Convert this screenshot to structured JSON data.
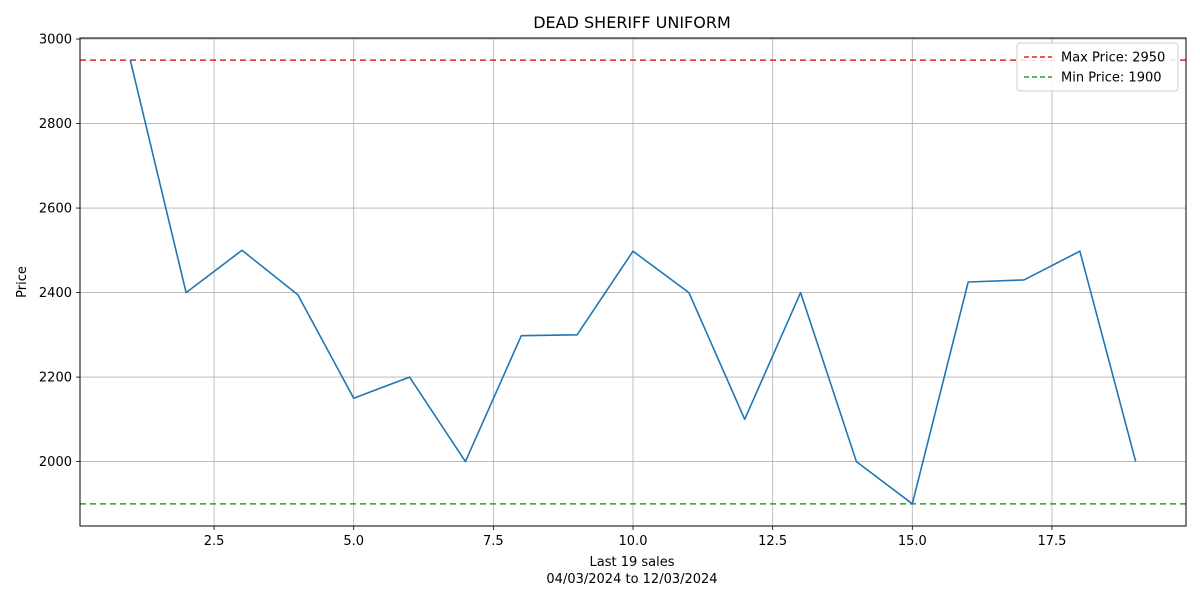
{
  "chart_data": {
    "type": "line",
    "title": "DEAD SHERIFF UNIFORM",
    "xlabel": "Last 19 sales",
    "xlabel_sub": "04/03/2024 to 12/03/2024",
    "ylabel": "Price",
    "xlim": [
      0.1,
      19.9
    ],
    "ylim": [
      1847.5,
      3002.5
    ],
    "xticks": [
      2.5,
      5.0,
      7.5,
      10.0,
      12.5,
      15.0,
      17.5
    ],
    "xtick_labels": [
      "2.5",
      "5.0",
      "7.5",
      "10.0",
      "12.5",
      "15.0",
      "17.5"
    ],
    "yticks": [
      2000,
      2200,
      2400,
      2600,
      2800,
      3000
    ],
    "ytick_labels": [
      "2000",
      "2200",
      "2400",
      "2600",
      "2800",
      "3000"
    ],
    "grid": true,
    "legend_position": "top-right",
    "series": [
      {
        "color": "#1f77b4",
        "x": [
          1,
          2,
          3,
          4,
          5,
          6,
          7,
          8,
          9,
          10,
          11,
          12,
          13,
          14,
          15,
          16,
          17,
          18,
          19
        ],
        "y": [
          2950,
          2400,
          2500,
          2395,
          2150,
          2200,
          2000,
          2298,
          2300,
          2498,
          2400,
          2100,
          2400,
          2000,
          1900,
          2425,
          2430,
          2498,
          2000
        ]
      }
    ],
    "reference_lines": [
      {
        "label": "Max Price: 2950",
        "value": 2950,
        "color": "#d62728",
        "style": "dashed"
      },
      {
        "label": "Min Price: 1900",
        "value": 1900,
        "color": "#2ca02c",
        "style": "dashed"
      }
    ]
  }
}
